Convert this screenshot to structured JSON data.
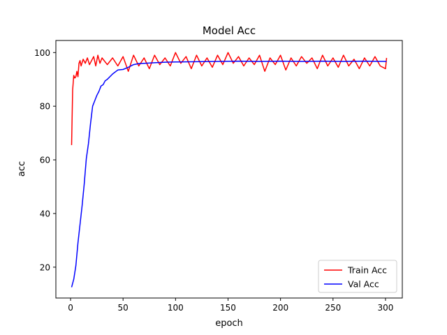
{
  "chart_data": {
    "type": "line",
    "title": "Model Acc",
    "xlabel": "epoch",
    "ylabel": "acc",
    "xlim": [
      -14,
      316
    ],
    "ylim": [
      8.5,
      104.5
    ],
    "xticks": [
      0,
      50,
      100,
      150,
      200,
      250,
      300
    ],
    "yticks": [
      20,
      40,
      60,
      80,
      100
    ],
    "grid": false,
    "legend_position": "lower-right",
    "series": [
      {
        "name": "Train Acc",
        "color": "#ff0000",
        "x": [
          1,
          2,
          3,
          4,
          5,
          6,
          7,
          8,
          9,
          10,
          12,
          14,
          16,
          18,
          20,
          22,
          24,
          26,
          28,
          30,
          35,
          40,
          45,
          50,
          55,
          60,
          65,
          70,
          75,
          80,
          85,
          90,
          95,
          100,
          105,
          110,
          115,
          120,
          125,
          130,
          135,
          140,
          145,
          150,
          155,
          160,
          165,
          170,
          175,
          180,
          185,
          190,
          195,
          200,
          205,
          210,
          215,
          220,
          225,
          230,
          235,
          240,
          245,
          250,
          255,
          260,
          265,
          270,
          275,
          280,
          285,
          290,
          295,
          300,
          301
        ],
        "values": [
          65.5,
          86,
          91.5,
          90.5,
          91,
          93,
          91,
          96,
          97,
          95,
          97.5,
          96,
          98,
          95.5,
          97,
          98.5,
          95,
          99,
          96,
          98,
          95.5,
          98,
          95,
          98.5,
          93,
          99,
          95,
          98,
          94,
          99,
          95.5,
          98,
          95,
          100,
          96,
          98.5,
          94,
          99,
          95,
          98,
          94.5,
          99,
          95.5,
          100,
          96,
          98.5,
          95,
          98,
          95.5,
          99,
          93,
          98,
          95.5,
          99,
          93.5,
          98,
          95,
          98.5,
          96,
          98,
          94,
          99,
          95,
          98,
          94.5,
          99,
          95,
          97.5,
          94,
          98,
          95,
          98.5,
          95,
          94,
          98
        ]
      },
      {
        "name": "Val Acc",
        "color": "#0000ff",
        "x": [
          1,
          3,
          5,
          7,
          9,
          11,
          13,
          15,
          17,
          19,
          21,
          23,
          25,
          27,
          29,
          31,
          33,
          35,
          40,
          45,
          50,
          55,
          60,
          65,
          70,
          80,
          90,
          100,
          120,
          140,
          160,
          180,
          200,
          220,
          240,
          260,
          280,
          300,
          301
        ],
        "values": [
          12.5,
          15.5,
          20.5,
          29,
          36,
          43,
          51,
          60.5,
          66,
          73.5,
          80,
          82,
          84,
          85.5,
          87.5,
          88,
          89.5,
          90,
          92,
          93.5,
          93.7,
          94.5,
          95.5,
          95.9,
          96,
          96.2,
          96.4,
          96.5,
          96.6,
          96.7,
          96.8,
          96.7,
          96.8,
          96.7,
          96.8,
          96.7,
          96.8,
          96.7,
          96.7
        ]
      }
    ]
  }
}
